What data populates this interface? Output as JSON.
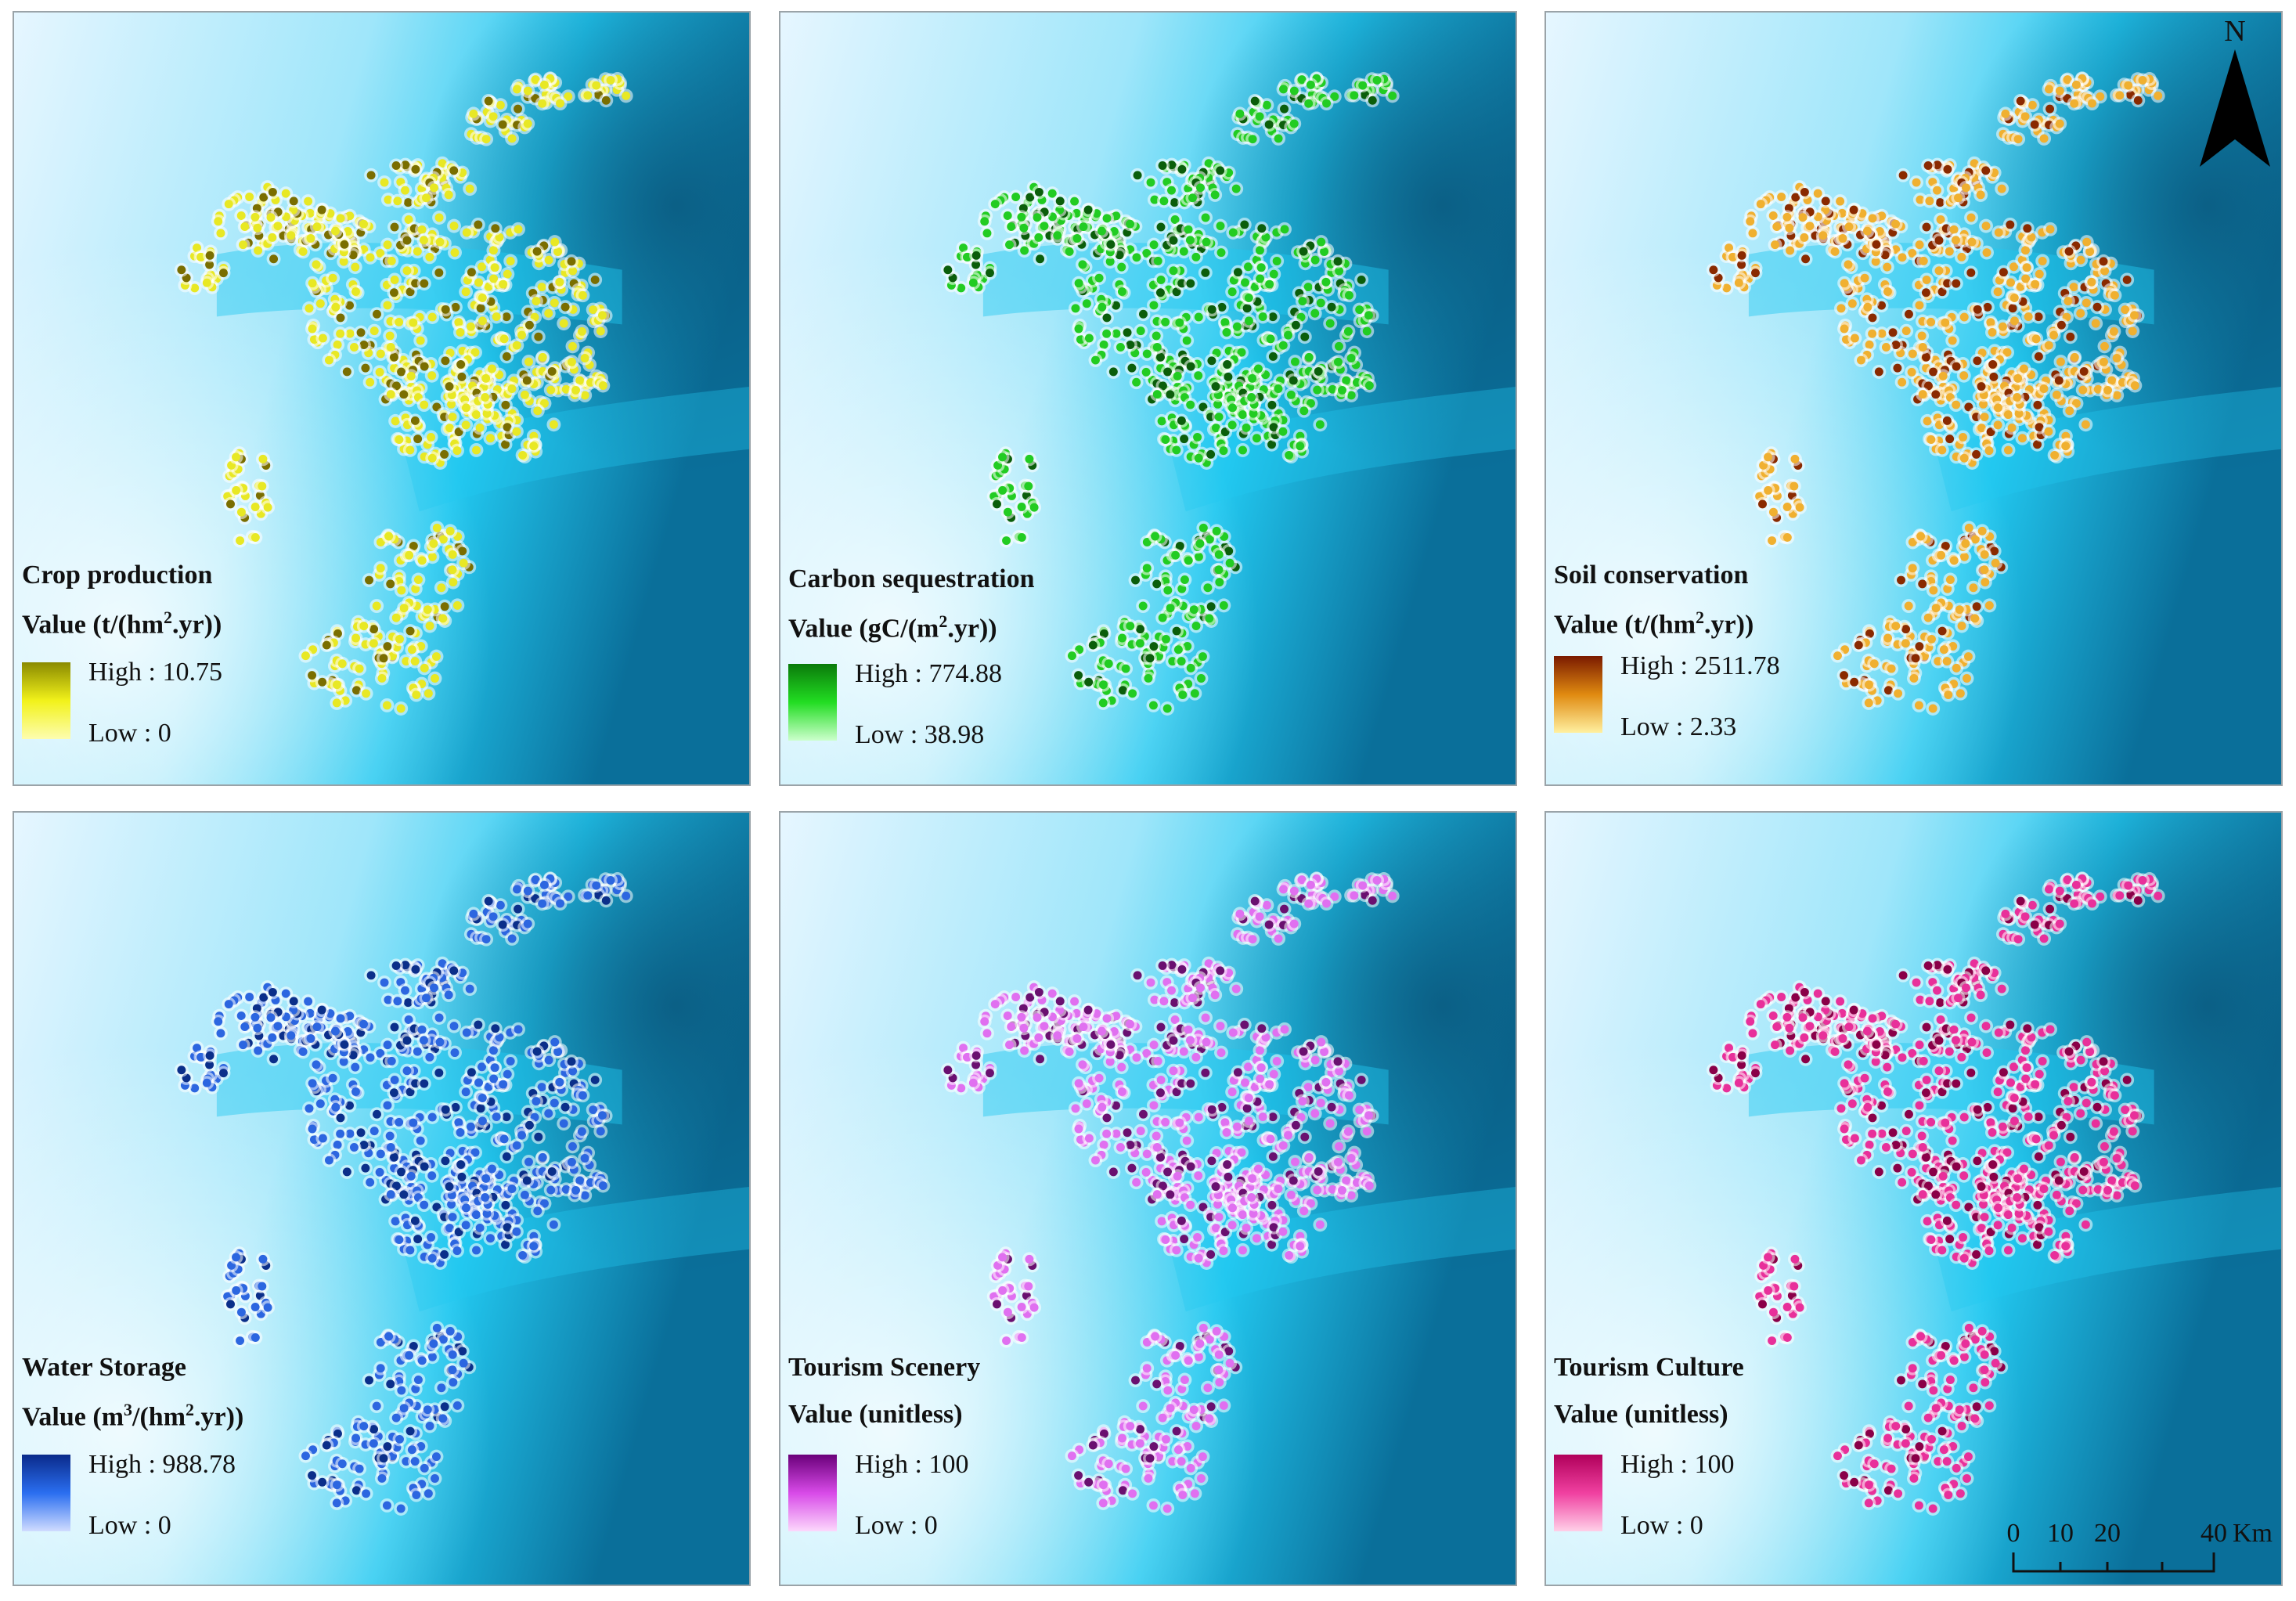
{
  "panels": [
    {
      "id": "crop",
      "title": "Crop production",
      "unit_prefix": "Value (t/(hm",
      "unit_sup": "2",
      "unit_suffix": ".yr))",
      "high": "High : 10.75",
      "low": "Low : 0",
      "ramp": [
        "#8a8a00",
        "#f2f21a",
        "#fdfdb0"
      ],
      "dot": "#e8e824",
      "dot_dark": "#7a6e00"
    },
    {
      "id": "carbon",
      "title": "Carbon sequestration",
      "unit_prefix": "Value (gC/(m",
      "unit_sup": "2",
      "unit_suffix": ".yr))",
      "high": "High : 774.88",
      "low": "Low : 38.98",
      "ramp": [
        "#0a7a0a",
        "#22dd22",
        "#ccffcc"
      ],
      "dot": "#22cc22",
      "dot_dark": "#0b5e0b"
    },
    {
      "id": "soil",
      "title": "Soil conservation",
      "unit_prefix": "Value (t/(hm",
      "unit_sup": "2",
      "unit_suffix": ".yr))",
      "high": "High : 2511.78",
      "low": "Low : 2.33",
      "ramp": [
        "#7a1a00",
        "#e08a10",
        "#fff0a0"
      ],
      "dot": "#f0b030",
      "dot_dark": "#8a2a00"
    },
    {
      "id": "water",
      "title": "Water Storage",
      "unit_prefix": "Value (m",
      "unit_sup": "3",
      "unit_mid": "/(hm",
      "unit_sup2": "2",
      "unit_suffix": ".yr))",
      "high": "High : 988.78",
      "low": "Low : 0",
      "ramp": [
        "#0a2a8a",
        "#2a6ef0",
        "#d0dcff"
      ],
      "dot": "#2c66e0",
      "dot_dark": "#0b2f8a"
    },
    {
      "id": "scenery",
      "title": "Tourism Scenery",
      "unit_prefix": "Value (unitless)",
      "high": "High : 100",
      "low": "Low : 0",
      "ramp": [
        "#6a007a",
        "#d84ae8",
        "#fcd8fc"
      ],
      "dot": "#e070f0",
      "dot_dark": "#6a1070"
    },
    {
      "id": "culture",
      "title": "Tourism Culture",
      "unit_prefix": "Value (unitless)",
      "high": "High : 100",
      "low": "Low : 0",
      "ramp": [
        "#b0005a",
        "#f040a0",
        "#ffd0e8"
      ],
      "dot": "#e8309a",
      "dot_dark": "#8a0048"
    }
  ],
  "north_label": "N",
  "scale": {
    "ticks": [
      "0",
      "10",
      "20",
      "40"
    ],
    "unit": "Km"
  },
  "colors": {
    "water_light": "#e6f6ff",
    "water_mid": "#22c8f0",
    "water_deep": "#0a6f9a"
  }
}
